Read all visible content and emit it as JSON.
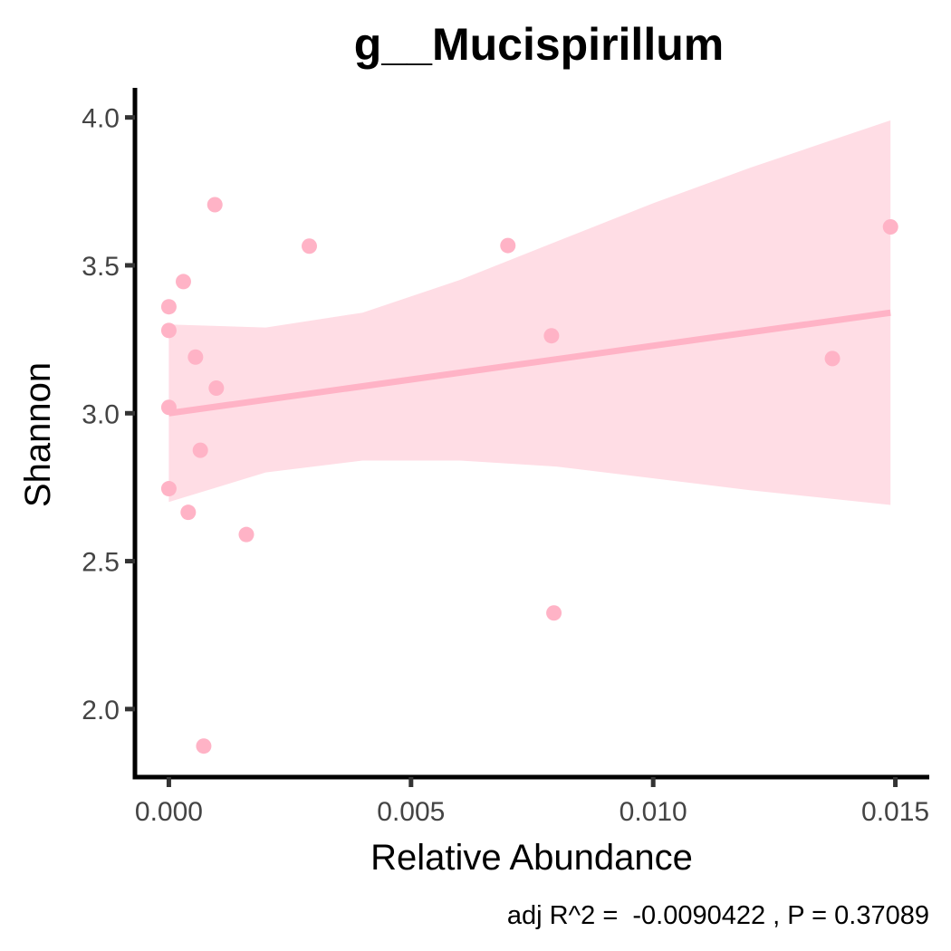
{
  "chart_data": {
    "type": "scatter",
    "title": "g__Mucispirillum",
    "xlabel": "Relative Abundance",
    "ylabel": "Shannon",
    "caption": "adj R^2 =  -0.0090422 , P = 0.37089",
    "xlim": [
      -0.0007,
      0.0157
    ],
    "ylim": [
      1.77,
      4.1
    ],
    "x_ticks": [
      0.0,
      0.005,
      0.01,
      0.015
    ],
    "x_tick_labels": [
      "0.000",
      "0.005",
      "0.010",
      "0.015"
    ],
    "y_ticks": [
      2.0,
      2.5,
      3.0,
      3.5,
      4.0
    ],
    "y_tick_labels": [
      "2.0",
      "2.5",
      "3.0",
      "3.5",
      "4.0"
    ],
    "grid": false,
    "point_color": "#FFB3C6",
    "fit_color": "#FFB3C6",
    "ribbon_color": "#FFDDE5",
    "points": [
      {
        "x": 0.0,
        "y": 3.36
      },
      {
        "x": 0.0,
        "y": 3.28
      },
      {
        "x": 0.0,
        "y": 3.02
      },
      {
        "x": 0.0,
        "y": 2.745
      },
      {
        "x": 0.0003,
        "y": 3.445
      },
      {
        "x": 0.0004,
        "y": 2.665
      },
      {
        "x": 0.00055,
        "y": 3.19
      },
      {
        "x": 0.00065,
        "y": 2.875
      },
      {
        "x": 0.00072,
        "y": 1.875
      },
      {
        "x": 0.00095,
        "y": 3.705
      },
      {
        "x": 0.00098,
        "y": 3.085
      },
      {
        "x": 0.0016,
        "y": 2.59
      },
      {
        "x": 0.0029,
        "y": 3.565
      },
      {
        "x": 0.007,
        "y": 3.567
      },
      {
        "x": 0.0079,
        "y": 3.262
      },
      {
        "x": 0.00795,
        "y": 2.325
      },
      {
        "x": 0.0137,
        "y": 3.185
      },
      {
        "x": 0.0149,
        "y": 3.63
      }
    ],
    "fit": {
      "x": [
        0.0,
        0.0149
      ],
      "y": [
        3.0,
        3.34
      ]
    },
    "ribbon": {
      "x": [
        0.0,
        0.002,
        0.004,
        0.006,
        0.008,
        0.01,
        0.012,
        0.0149
      ],
      "lower": [
        2.7,
        2.8,
        2.84,
        2.84,
        2.82,
        2.78,
        2.74,
        2.69
      ],
      "upper": [
        3.3,
        3.29,
        3.34,
        3.45,
        3.58,
        3.71,
        3.83,
        3.99
      ]
    }
  }
}
